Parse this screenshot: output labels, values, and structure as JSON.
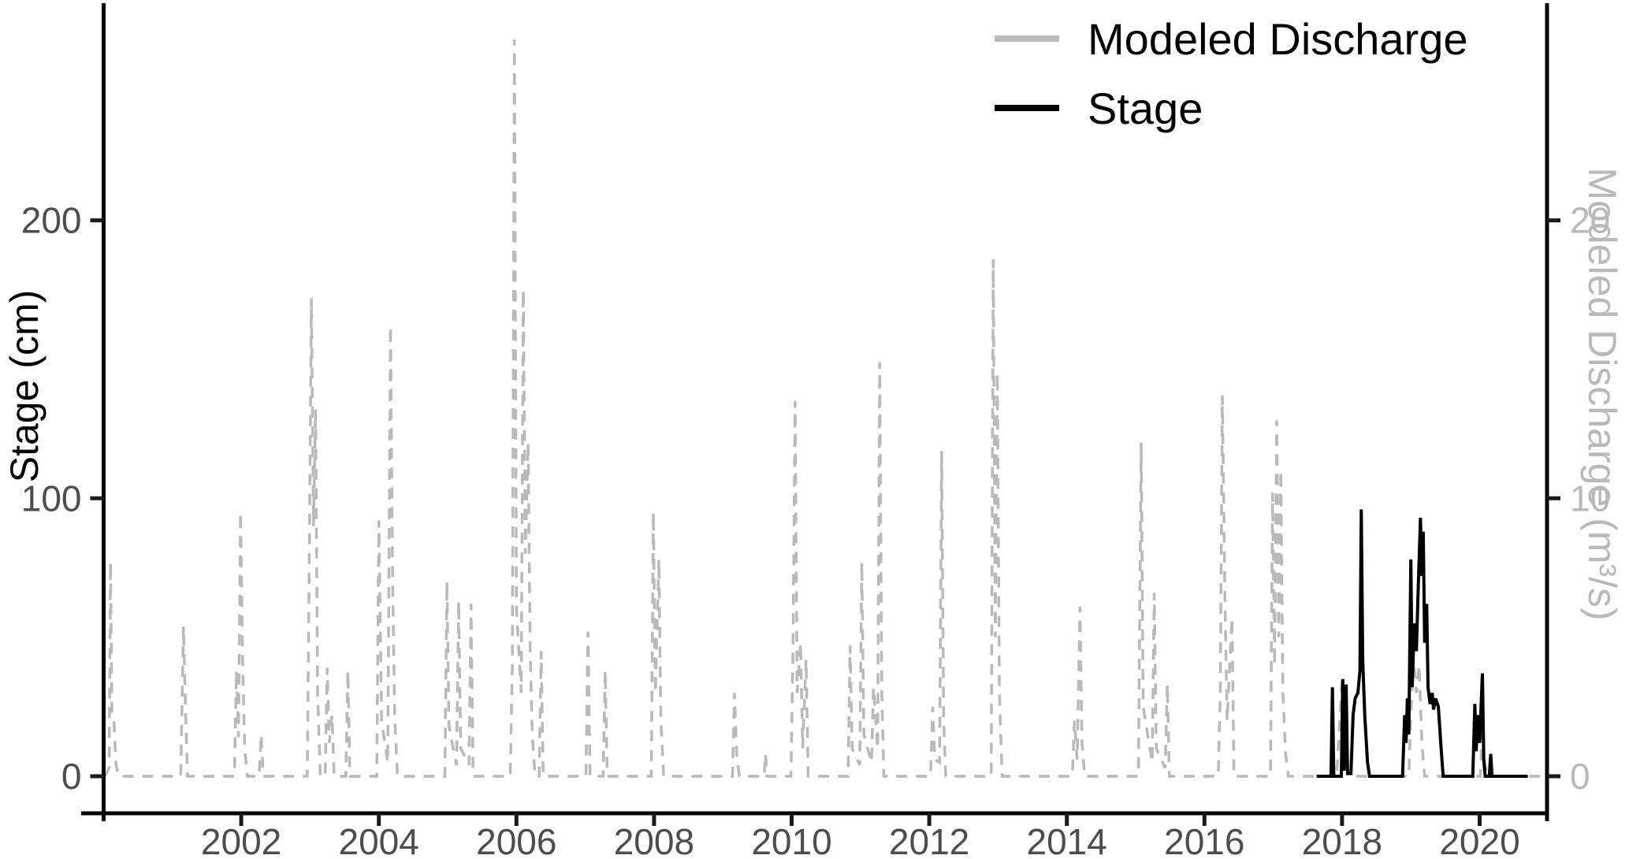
{
  "chart_data": {
    "type": "line",
    "title": "",
    "x_axis": {
      "range": [
        2000,
        2020.95
      ],
      "ticks": [
        2002,
        2004,
        2006,
        2008,
        2010,
        2012,
        2014,
        2016,
        2018,
        2020
      ],
      "tick_labels": [
        "2002",
        "2004",
        "2006",
        "2008",
        "2010",
        "2012",
        "2014",
        "2016",
        "2018",
        "2020"
      ]
    },
    "y_left": {
      "label": "Stage (cm)",
      "units": "cm",
      "ticks": [
        0,
        100,
        200
      ],
      "tick_labels": [
        "0",
        "100",
        "200"
      ],
      "range": [
        0,
        278
      ]
    },
    "y_right": {
      "label": "Modeled Discharge (m³/s)",
      "units": "m³/s",
      "ticks": [
        0,
        10,
        20
      ],
      "tick_labels": [
        "0",
        "10",
        "20"
      ],
      "range": [
        0,
        27.8
      ]
    },
    "legend": {
      "position": "top-right",
      "entries": [
        {
          "label": "Modeled Discharge",
          "color": "#b9b9b9",
          "style": "solid-key"
        },
        {
          "label": "Stage",
          "color": "#000000",
          "style": "solid-key"
        }
      ]
    },
    "grid": false,
    "series": [
      {
        "name": "Modeled Discharge",
        "axis": "right",
        "units": "m³/s",
        "line_style": "dashed",
        "color": "#b9b9b9",
        "points": [
          [
            2000.02,
            0
          ],
          [
            2000.08,
            0.3
          ],
          [
            2000.1,
            7.7
          ],
          [
            2000.12,
            2.3
          ],
          [
            2000.15,
            2.0
          ],
          [
            2000.18,
            0.4
          ],
          [
            2000.22,
            0
          ],
          [
            2001.12,
            0
          ],
          [
            2001.16,
            5.4
          ],
          [
            2001.19,
            2.4
          ],
          [
            2001.22,
            0
          ],
          [
            2001.9,
            0
          ],
          [
            2001.93,
            3.8
          ],
          [
            2001.96,
            1.4
          ],
          [
            2001.99,
            9.5
          ],
          [
            2002.02,
            4.2
          ],
          [
            2002.05,
            1.0
          ],
          [
            2002.09,
            0
          ],
          [
            2002.26,
            0
          ],
          [
            2002.29,
            1.5
          ],
          [
            2002.32,
            0
          ],
          [
            2002.96,
            0
          ],
          [
            2002.99,
            8.0
          ],
          [
            2003.02,
            17.2
          ],
          [
            2003.05,
            9.0
          ],
          [
            2003.08,
            13.2
          ],
          [
            2003.11,
            3.0
          ],
          [
            2003.15,
            0
          ],
          [
            2003.22,
            0
          ],
          [
            2003.25,
            3.9
          ],
          [
            2003.28,
            1.2
          ],
          [
            2003.32,
            2.2
          ],
          [
            2003.35,
            0
          ],
          [
            2003.52,
            0
          ],
          [
            2003.55,
            3.8
          ],
          [
            2003.58,
            0
          ],
          [
            2003.97,
            0
          ],
          [
            2004.0,
            9.2
          ],
          [
            2004.04,
            2.0
          ],
          [
            2004.13,
            0.5
          ],
          [
            2004.17,
            16.2
          ],
          [
            2004.2,
            7.0
          ],
          [
            2004.23,
            2.2
          ],
          [
            2004.27,
            0
          ],
          [
            2004.96,
            0
          ],
          [
            2004.99,
            7.0
          ],
          [
            2005.02,
            1.8
          ],
          [
            2005.13,
            0.4
          ],
          [
            2005.16,
            6.3
          ],
          [
            2005.19,
            1.0
          ],
          [
            2005.31,
            0.4
          ],
          [
            2005.34,
            6.2
          ],
          [
            2005.37,
            0
          ],
          [
            2005.91,
            0
          ],
          [
            2005.94,
            4.0
          ],
          [
            2005.97,
            26.5
          ],
          [
            2006.0,
            6.0
          ],
          [
            2006.07,
            3.0
          ],
          [
            2006.1,
            17.5
          ],
          [
            2006.13,
            8.0
          ],
          [
            2006.17,
            12.0
          ],
          [
            2006.2,
            4.4
          ],
          [
            2006.23,
            1.5
          ],
          [
            2006.27,
            0
          ],
          [
            2006.33,
            0
          ],
          [
            2006.36,
            4.5
          ],
          [
            2006.39,
            0
          ],
          [
            2007.01,
            0
          ],
          [
            2007.04,
            5.2
          ],
          [
            2007.07,
            0
          ],
          [
            2007.26,
            0
          ],
          [
            2007.29,
            3.8
          ],
          [
            2007.32,
            0
          ],
          [
            2007.96,
            0
          ],
          [
            2007.99,
            9.5
          ],
          [
            2008.02,
            3.0
          ],
          [
            2008.07,
            7.8
          ],
          [
            2008.1,
            2.0
          ],
          [
            2008.14,
            0
          ],
          [
            2009.14,
            0
          ],
          [
            2009.17,
            3.0
          ],
          [
            2009.2,
            0.8
          ],
          [
            2009.24,
            0
          ],
          [
            2009.6,
            0
          ],
          [
            2009.62,
            0.8
          ],
          [
            2009.64,
            0
          ],
          [
            2009.99,
            0
          ],
          [
            2010.02,
            4.5
          ],
          [
            2010.05,
            13.5
          ],
          [
            2010.08,
            3.0
          ],
          [
            2010.13,
            4.8
          ],
          [
            2010.16,
            1.0
          ],
          [
            2010.21,
            4.2
          ],
          [
            2010.24,
            0
          ],
          [
            2010.82,
            0
          ],
          [
            2010.85,
            4.7
          ],
          [
            2010.88,
            1.0
          ],
          [
            2010.99,
            0.4
          ],
          [
            2011.02,
            7.7
          ],
          [
            2011.05,
            1.5
          ],
          [
            2011.16,
            0.5
          ],
          [
            2011.19,
            3.2
          ],
          [
            2011.25,
            1.0
          ],
          [
            2011.28,
            14.9
          ],
          [
            2011.31,
            3.0
          ],
          [
            2011.34,
            0
          ],
          [
            2012.02,
            0
          ],
          [
            2012.05,
            2.5
          ],
          [
            2012.08,
            0.6
          ],
          [
            2012.15,
            0.5
          ],
          [
            2012.18,
            11.7
          ],
          [
            2012.21,
            2.0
          ],
          [
            2012.24,
            0
          ],
          [
            2012.9,
            0
          ],
          [
            2012.93,
            18.6
          ],
          [
            2012.96,
            5.0
          ],
          [
            2012.99,
            14.5
          ],
          [
            2013.02,
            3.0
          ],
          [
            2013.06,
            0
          ],
          [
            2014.08,
            0
          ],
          [
            2014.11,
            2.0
          ],
          [
            2014.15,
            0.6
          ],
          [
            2014.19,
            6.1
          ],
          [
            2014.22,
            1.2
          ],
          [
            2014.26,
            0
          ],
          [
            2015.04,
            0
          ],
          [
            2015.08,
            12.0
          ],
          [
            2015.11,
            2.5
          ],
          [
            2015.24,
            0.5
          ],
          [
            2015.27,
            6.6
          ],
          [
            2015.3,
            1.0
          ],
          [
            2015.43,
            0.3
          ],
          [
            2015.46,
            3.3
          ],
          [
            2015.49,
            0
          ],
          [
            2016.2,
            0
          ],
          [
            2016.23,
            3.0
          ],
          [
            2016.26,
            13.7
          ],
          [
            2016.3,
            6.0
          ],
          [
            2016.33,
            2.0
          ],
          [
            2016.4,
            5.7
          ],
          [
            2016.43,
            0
          ],
          [
            2016.96,
            0
          ],
          [
            2016.99,
            10.2
          ],
          [
            2017.02,
            4.0
          ],
          [
            2017.05,
            12.8
          ],
          [
            2017.08,
            5.0
          ],
          [
            2017.11,
            11.0
          ],
          [
            2017.14,
            3.0
          ],
          [
            2017.18,
            0.8
          ],
          [
            2017.22,
            0
          ],
          [
            2017.92,
            0
          ],
          [
            2017.95,
            1.2
          ],
          [
            2018.0,
            3.5
          ],
          [
            2018.05,
            1.0
          ],
          [
            2018.09,
            0
          ],
          [
            2018.97,
            0
          ],
          [
            2019.0,
            2.2
          ],
          [
            2019.04,
            4.2
          ],
          [
            2019.08,
            3.0
          ],
          [
            2019.12,
            4.0
          ],
          [
            2019.16,
            1.2
          ],
          [
            2019.2,
            0
          ],
          [
            2020.01,
            0
          ],
          [
            2020.04,
            2.0
          ],
          [
            2020.07,
            0.5
          ],
          [
            2020.11,
            0
          ],
          [
            2020.88,
            0
          ]
        ]
      },
      {
        "name": "Stage",
        "axis": "left",
        "units": "cm",
        "line_style": "solid",
        "color": "#000000",
        "points": [
          [
            2017.63,
            0
          ],
          [
            2017.84,
            0
          ],
          [
            2017.86,
            32
          ],
          [
            2017.88,
            0
          ],
          [
            2017.99,
            0
          ],
          [
            2018.01,
            35
          ],
          [
            2018.03,
            2
          ],
          [
            2018.06,
            33
          ],
          [
            2018.08,
            1
          ],
          [
            2018.13,
            1
          ],
          [
            2018.16,
            22
          ],
          [
            2018.19,
            28
          ],
          [
            2018.23,
            30
          ],
          [
            2018.26,
            38
          ],
          [
            2018.28,
            96
          ],
          [
            2018.3,
            42
          ],
          [
            2018.33,
            22
          ],
          [
            2018.37,
            5
          ],
          [
            2018.4,
            0
          ],
          [
            2018.88,
            0
          ],
          [
            2018.91,
            22
          ],
          [
            2018.93,
            12
          ],
          [
            2018.95,
            28
          ],
          [
            2018.97,
            15
          ],
          [
            2019.0,
            78
          ],
          [
            2019.02,
            32
          ],
          [
            2019.05,
            55
          ],
          [
            2019.08,
            45
          ],
          [
            2019.11,
            70
          ],
          [
            2019.14,
            93
          ],
          [
            2019.16,
            72
          ],
          [
            2019.18,
            88
          ],
          [
            2019.2,
            48
          ],
          [
            2019.23,
            62
          ],
          [
            2019.25,
            32
          ],
          [
            2019.28,
            26
          ],
          [
            2019.31,
            30
          ],
          [
            2019.33,
            24
          ],
          [
            2019.36,
            28
          ],
          [
            2019.4,
            25
          ],
          [
            2019.44,
            10
          ],
          [
            2019.47,
            0
          ],
          [
            2019.9,
            0
          ],
          [
            2019.93,
            26
          ],
          [
            2019.95,
            9
          ],
          [
            2019.97,
            22
          ],
          [
            2020.0,
            12
          ],
          [
            2020.04,
            37
          ],
          [
            2020.06,
            6
          ],
          [
            2020.08,
            0
          ],
          [
            2020.14,
            0
          ],
          [
            2020.16,
            8
          ],
          [
            2020.18,
            0
          ],
          [
            2020.7,
            0
          ]
        ]
      }
    ]
  },
  "colors": {
    "background": "#ffffff",
    "axis_line": "#000000",
    "tick_mark": "#1a1a1a",
    "tick_label_dark": "#4d4d4d",
    "tick_label_gray": "#b9b9b9",
    "series_gray": "#b9b9b9",
    "series_black": "#000000"
  }
}
